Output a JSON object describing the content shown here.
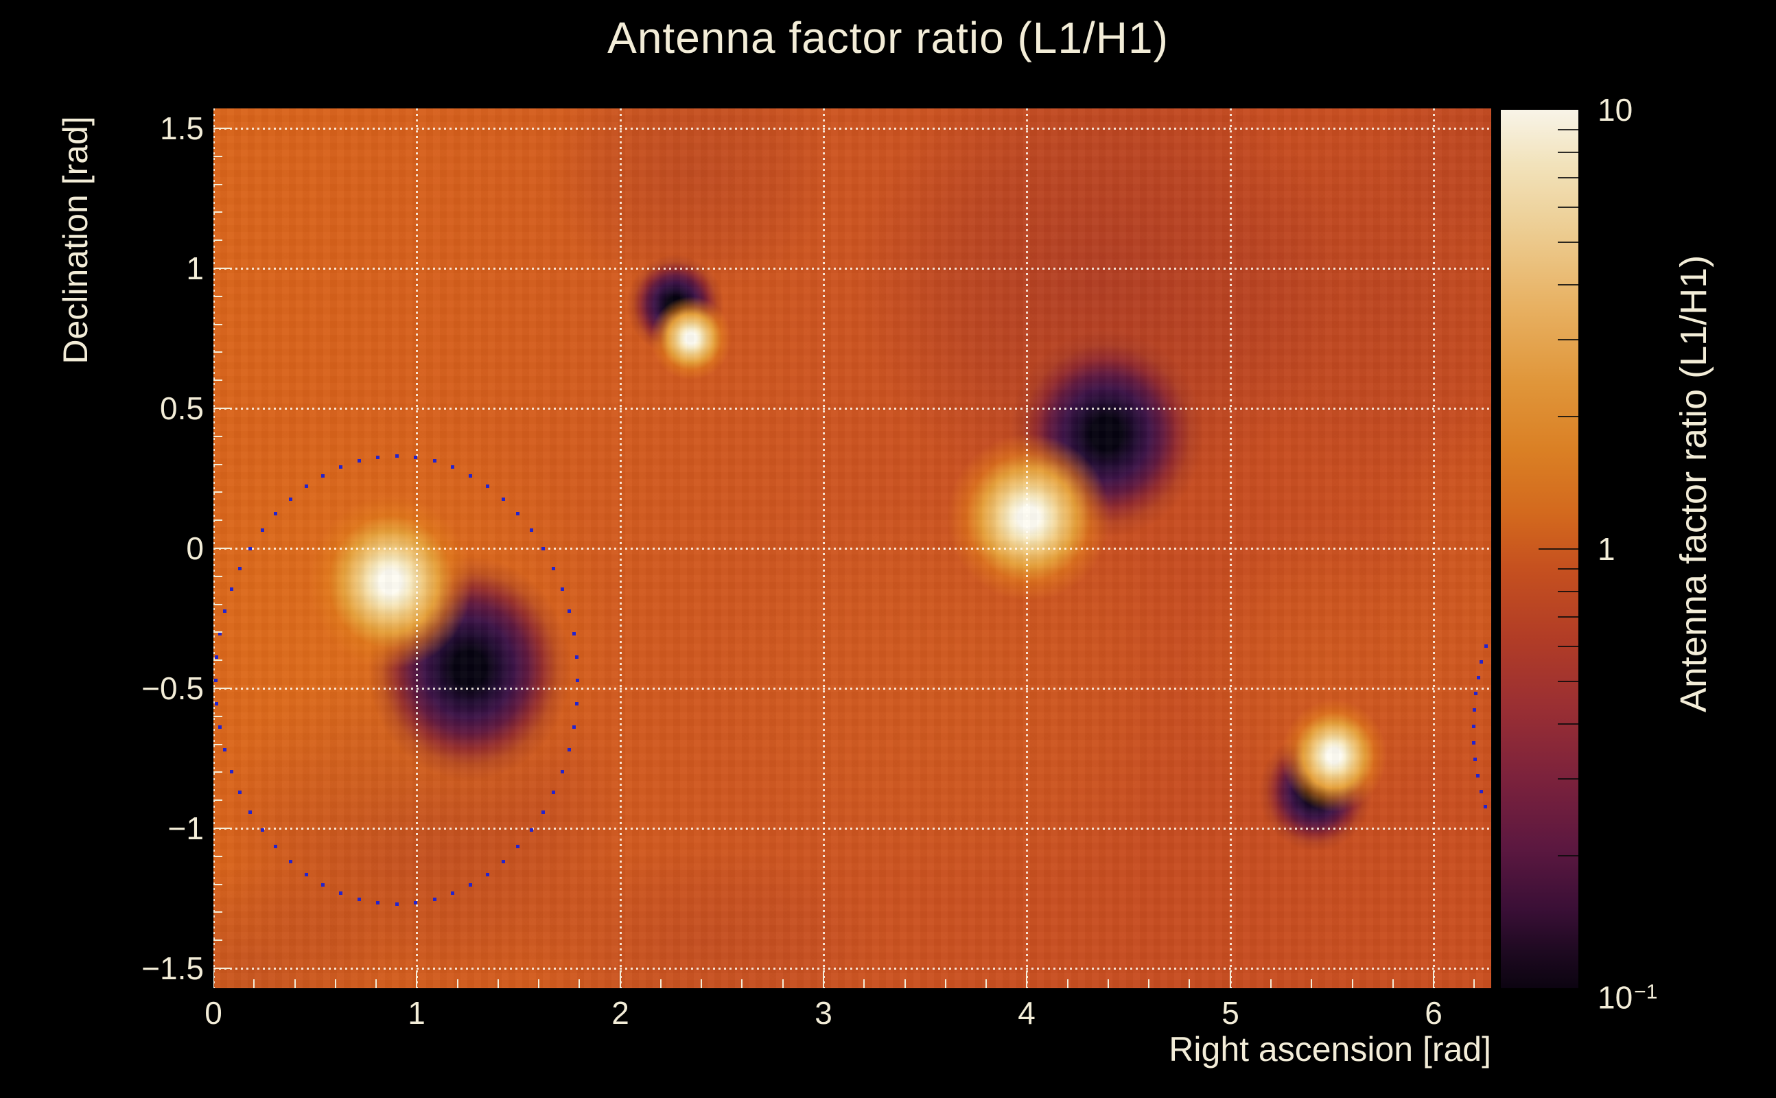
{
  "title": "Antenna factor ratio (L1/H1)",
  "chart_data": {
    "type": "heatmap",
    "title": "Antenna factor ratio (L1/H1)",
    "xlabel": "Right ascension [rad]",
    "ylabel": "Declination [rad]",
    "zlabel": "Antenna factor ratio (L1/H1)",
    "x_range": [
      0,
      6.2832
    ],
    "y_range": [
      -1.5708,
      1.5708
    ],
    "x_major_ticks": [
      0,
      1,
      2,
      3,
      4,
      5,
      6
    ],
    "x_minor_step": 0.2,
    "y_major_ticks": [
      -1.5,
      -1,
      -0.5,
      0,
      0.5,
      1,
      1.5
    ],
    "y_minor_step": 0.1,
    "grid": true,
    "grid_style": "dotted",
    "z_scale": "log",
    "z_range": [
      0.1,
      10
    ],
    "background_ratio": 1.0,
    "colorbar": {
      "labels": [
        {
          "value": 10,
          "base": "10",
          "exp": ""
        },
        {
          "value": 1,
          "base": "1",
          "exp": ""
        },
        {
          "value": 0.1,
          "base": "10",
          "exp": "−1"
        }
      ],
      "major_ticks": [
        1
      ],
      "minor_ticks": [
        9,
        8,
        7,
        6,
        5,
        4,
        3,
        2,
        0.9,
        0.8,
        0.7,
        0.6,
        0.5,
        0.4,
        0.3,
        0.2
      ]
    },
    "features": [
      {
        "kind": "bright",
        "ra": 0.87,
        "dec": -0.12,
        "peak_ratio": 10,
        "halo_rx_rad": 0.4,
        "halo_ry_rad": 0.31
      },
      {
        "kind": "bright",
        "ra": 2.35,
        "dec": 0.75,
        "peak_ratio": 8,
        "halo_rx_rad": 0.2,
        "halo_ry_rad": 0.15
      },
      {
        "kind": "bright",
        "ra": 4.01,
        "dec": 0.11,
        "peak_ratio": 10,
        "halo_rx_rad": 0.4,
        "halo_ry_rad": 0.3
      },
      {
        "kind": "bright",
        "ra": 5.51,
        "dec": -0.74,
        "peak_ratio": 7,
        "halo_rx_rad": 0.26,
        "halo_ry_rad": 0.2
      },
      {
        "kind": "dark",
        "ra": 1.26,
        "dec": -0.43,
        "peak_ratio": 0.1,
        "halo_rx_rad": 0.5,
        "halo_ry_rad": 0.4
      },
      {
        "kind": "dark",
        "ra": 2.27,
        "dec": 0.87,
        "peak_ratio": 0.12,
        "halo_rx_rad": 0.24,
        "halo_ry_rad": 0.18
      },
      {
        "kind": "dark",
        "ra": 4.39,
        "dec": 0.41,
        "peak_ratio": 0.1,
        "halo_rx_rad": 0.48,
        "halo_ry_rad": 0.37
      },
      {
        "kind": "dark",
        "ra": 5.42,
        "dec": -0.87,
        "peak_ratio": 0.12,
        "halo_rx_rad": 0.28,
        "halo_ry_rad": 0.21
      }
    ],
    "shading": [
      {
        "tone": "bright",
        "ra": 0.85,
        "dec": -0.3,
        "rx_rad": 1.5,
        "ry_rad": 1.1,
        "alpha": 0.42
      },
      {
        "tone": "bright",
        "ra": 3.7,
        "dec": -0.5,
        "rx_rad": 1.7,
        "ry_rad": 1.0,
        "alpha": 0.2
      },
      {
        "tone": "bright",
        "ra": 5.45,
        "dec": -0.45,
        "rx_rad": 0.95,
        "ry_rad": 0.7,
        "alpha": 0.25
      },
      {
        "tone": "bright",
        "ra": 6.28,
        "dec": -0.2,
        "rx_rad": 0.8,
        "ry_rad": 0.95,
        "alpha": 0.22
      },
      {
        "tone": "dark",
        "ra": 4.35,
        "dec": 0.95,
        "rx_rad": 1.6,
        "ry_rad": 1.1,
        "alpha": 0.5
      },
      {
        "tone": "dark",
        "ra": 2.35,
        "dec": 1.35,
        "rx_rad": 0.95,
        "ry_rad": 0.6,
        "alpha": 0.3
      },
      {
        "tone": "dark",
        "ra": 1.05,
        "dec": -1.0,
        "rx_rad": 1.35,
        "ry_rad": 0.85,
        "alpha": 0.32
      },
      {
        "tone": "dark",
        "ra": 0.2,
        "dec": -1.5,
        "rx_rad": 0.9,
        "ry_rad": 0.5,
        "alpha": 0.28
      },
      {
        "tone": "dark",
        "ra": 2.4,
        "dec": -1.4,
        "rx_rad": 1.2,
        "ry_rad": 0.45,
        "alpha": 0.2
      },
      {
        "tone": "dark",
        "ra": 5.75,
        "dec": 0.9,
        "rx_rad": 1.1,
        "ry_rad": 0.9,
        "alpha": 0.24
      },
      {
        "tone": "dark",
        "ra": 6.25,
        "dec": 1.45,
        "rx_rad": 0.7,
        "ry_rad": 0.5,
        "alpha": 0.22
      }
    ],
    "contours": [
      {
        "name": "sky-ring-left",
        "style": "dotted",
        "color": "#2323CD",
        "center_ra": 0.9,
        "center_dec": -0.47,
        "rx_rad": 0.89,
        "ry_rad": 0.8,
        "start_deg": 0,
        "end_deg": 354,
        "step_deg": 6
      },
      {
        "name": "sky-ring-right",
        "style": "dotted",
        "color": "#2323CD",
        "center_ra": 6.93,
        "center_dec": -0.64,
        "rx_rad": 0.735,
        "ry_rad": 0.735,
        "start_deg": 152,
        "end_deg": 208,
        "step_deg": 4.6
      }
    ]
  },
  "colors": {
    "background": "#000000",
    "text": "#F3EDD8",
    "grid": "#FFFDF4",
    "tick": "#F3EDD8",
    "colorbar_tick": "#0A0A0A",
    "contour_dot": "#2323CD",
    "heat_base": {
      "angle": "93deg",
      "stops": [
        [
          "#DA651A",
          "0%"
        ],
        [
          "#D55E1C",
          "22%"
        ],
        [
          "#CD5420",
          "48%"
        ],
        [
          "#C74C20",
          "75%"
        ],
        [
          "#CA4F1F",
          "100%"
        ]
      ]
    },
    "bright_stops": [
      [
        "#FDFBF2",
        "0%"
      ],
      [
        "#FDFBF2",
        "13%"
      ],
      [
        "#F8ECC6",
        "24%"
      ],
      [
        "#F1C87C",
        "40%"
      ],
      [
        "#E7A039",
        "58%"
      ],
      [
        "rgba(228,126,26,0.60)",
        "76%"
      ],
      [
        "rgba(222,116,26,0)",
        "100%"
      ]
    ],
    "dark_stops": [
      [
        "#060310",
        "0%"
      ],
      [
        "#060310",
        "16%"
      ],
      [
        "#200B30",
        "30%"
      ],
      [
        "#3D1347",
        "44%"
      ],
      [
        "#61193F",
        "58%"
      ],
      [
        "rgba(140,38,48,0.85)",
        "72%"
      ],
      [
        "rgba(152,52,40,0.35)",
        "86%"
      ],
      [
        "rgba(160,60,40,0)",
        "100%"
      ]
    ],
    "shade_bright_rgb": "232,126,26",
    "shade_dark_rgb": "156,46,38",
    "palette_top_to_bottom": [
      [
        "#F8F4E8",
        0
      ],
      [
        "#F2E3BC",
        6
      ],
      [
        "#EDCF96",
        13
      ],
      [
        "#E8B264",
        22
      ],
      [
        "#E0963A",
        31
      ],
      [
        "#DA7F24",
        39
      ],
      [
        "#D3691E",
        46
      ],
      [
        "#C6511F",
        52
      ],
      [
        "#B23D26",
        60
      ],
      [
        "#9A2F33",
        68
      ],
      [
        "#7C223C",
        76
      ],
      [
        "#5C1840",
        84
      ],
      [
        "#3A0F36",
        91
      ],
      [
        "#1D0920",
        96
      ],
      [
        "#0C0411",
        100
      ]
    ]
  }
}
